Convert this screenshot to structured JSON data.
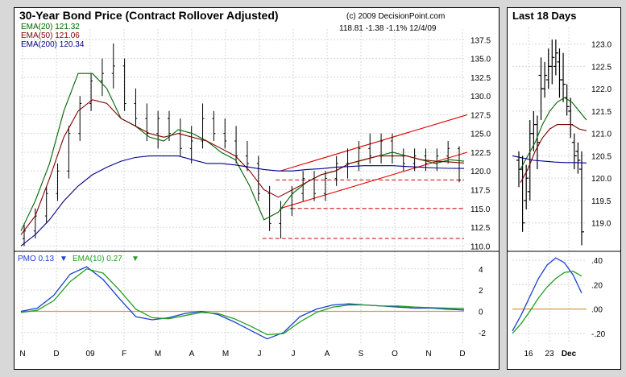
{
  "colors": {
    "background": "#d8d8d8",
    "grid": "#d7d7d7",
    "price_bars": "#000000",
    "ema20": "#006400",
    "ema50": "#800000",
    "ema200": "#00008b",
    "channel": "#e00000",
    "support": "#cc0000",
    "pmo": "#1a3fd6",
    "pmo_ema": "#20a020",
    "zero_line": "#d89a3a"
  },
  "main": {
    "title": "30-Year Bond Price (Contract Rollover Adjusted)",
    "copyright": "(c) 2009 DecisionPoint.com",
    "quote": "118.81  -1.38  -1.1%  12/4/09",
    "legend": {
      "ema20": "EMA(20) 121.32",
      "ema50": "EMA(50) 121.06",
      "ema200": "EMA(200) 120.34"
    },
    "pmo_legend": {
      "pmo": "PMO  0.13",
      "pmo_arrow": "▼",
      "ema": "EMA(10)  0.27",
      "ema_arrow": "▼"
    }
  },
  "side": {
    "title": "Last 18 Days"
  },
  "chart_data": [
    {
      "type": "line",
      "title": "30-Year Bond Price (Contract Rollover Adjusted)",
      "x_labels": [
        "N",
        "D",
        "09",
        "F",
        "M",
        "A",
        "M",
        "J",
        "J",
        "A",
        "S",
        "O",
        "N",
        "D"
      ],
      "y_ticks": [
        "137.5",
        "135.0",
        "132.5",
        "130.0",
        "127.5",
        "125.0",
        "122.5",
        "120.0",
        "117.5",
        "115.0",
        "112.5",
        "110.0"
      ],
      "ylim": [
        109.5,
        138.5
      ],
      "series": [
        {
          "name": "EMA(20)",
          "values": [
            112.0,
            116.0,
            121.0,
            128.0,
            133.0,
            133.0,
            131.0,
            127.0,
            126.0,
            124.5,
            124.0,
            125.5,
            125.0,
            124.0,
            122.5,
            121.5,
            118.0,
            113.5,
            114.5,
            117.0,
            118.5,
            119.5,
            120.0,
            121.0,
            121.5,
            122.0,
            122.5,
            122.0,
            121.5,
            121.0,
            121.5,
            121.3
          ]
        },
        {
          "name": "EMA(50)",
          "values": [
            111.5,
            114.0,
            119.0,
            124.5,
            128.0,
            129.5,
            129.0,
            127.0,
            126.0,
            125.0,
            124.5,
            125.0,
            124.5,
            124.0,
            123.0,
            122.0,
            120.0,
            117.5,
            116.5,
            117.5,
            118.5,
            119.5,
            120.0,
            121.0,
            121.5,
            122.0,
            122.0,
            122.0,
            121.5,
            121.3,
            121.2,
            121.06
          ]
        },
        {
          "name": "EMA(200)",
          "values": [
            110.0,
            111.5,
            113.5,
            116.0,
            118.0,
            119.5,
            120.5,
            121.3,
            121.8,
            122.0,
            122.0,
            122.0,
            121.5,
            121.0,
            121.0,
            120.8,
            120.5,
            120.2,
            120.0,
            120.0,
            120.2,
            120.3,
            120.5,
            120.6,
            120.7,
            120.7,
            120.7,
            120.6,
            120.5,
            120.4,
            120.35,
            120.34
          ]
        }
      ],
      "price_bars": [
        [
          111,
          113,
          110,
          112
        ],
        [
          112,
          115,
          111,
          114
        ],
        [
          114,
          118,
          113,
          117
        ],
        [
          117,
          121,
          116,
          120
        ],
        [
          120,
          126,
          119,
          125
        ],
        [
          125,
          130,
          124,
          129
        ],
        [
          129,
          133,
          128,
          132
        ],
        [
          132,
          135,
          130,
          133
        ],
        [
          133,
          137,
          131,
          134
        ],
        [
          134,
          135,
          128,
          129
        ],
        [
          129,
          131,
          126,
          127
        ],
        [
          127,
          129,
          124,
          125
        ],
        [
          125,
          128,
          123,
          127
        ],
        [
          127,
          128,
          124,
          125
        ],
        [
          125,
          127,
          122,
          123
        ],
        [
          123,
          126,
          121,
          124
        ],
        [
          124,
          129,
          123,
          127
        ],
        [
          127,
          128,
          124,
          125
        ],
        [
          125,
          127,
          123,
          124
        ],
        [
          124,
          126,
          121,
          122
        ],
        [
          122,
          124,
          120,
          121
        ],
        [
          121,
          122,
          116,
          117
        ],
        [
          117,
          118,
          112,
          113
        ],
        [
          113,
          116,
          111,
          115
        ],
        [
          115,
          118,
          114,
          117
        ],
        [
          117,
          120,
          116,
          119
        ],
        [
          119,
          120,
          116,
          117
        ],
        [
          117,
          120,
          116,
          119
        ],
        [
          119,
          122,
          118,
          121
        ],
        [
          121,
          123,
          119,
          121
        ],
        [
          121,
          124,
          120,
          123
        ],
        [
          123,
          125,
          121,
          122
        ],
        [
          122,
          125,
          121,
          124
        ],
        [
          124,
          125,
          121,
          122
        ],
        [
          122,
          123,
          120,
          121
        ],
        [
          121,
          123,
          120,
          122
        ],
        [
          122,
          123,
          120,
          121
        ],
        [
          121,
          123,
          120,
          122
        ],
        [
          122,
          124,
          121,
          123
        ],
        [
          123,
          123.3,
          118.5,
          118.8
        ]
      ],
      "channel_upper": [
        [
          117.5,
          120.0
        ],
        [
          126.7,
          127.5
        ]
      ],
      "channel_lower": [
        [
          117.5,
          115.0
        ],
        [
          126.7,
          122.5
        ]
      ],
      "support_levels": [
        118.81,
        115.0,
        111.0
      ],
      "pmo_panel": {
        "y_ticks": [
          "4",
          "2",
          "0",
          "-2"
        ],
        "ylim": [
          -3,
          5.5
        ],
        "series": [
          {
            "name": "PMO",
            "values": [
              0.0,
              0.3,
              1.5,
              3.5,
              4.2,
              3.0,
              1.2,
              -0.5,
              -0.8,
              -0.6,
              -0.2,
              0.0,
              -0.3,
              -1.0,
              -1.8,
              -2.6,
              -2.0,
              -0.5,
              0.2,
              0.6,
              0.7,
              0.6,
              0.5,
              0.4,
              0.3,
              0.3,
              0.2,
              0.13
            ]
          },
          {
            "name": "EMA(10)",
            "values": [
              -0.1,
              0.1,
              1.0,
              2.8,
              4.0,
              3.6,
              2.0,
              0.2,
              -0.6,
              -0.7,
              -0.4,
              -0.1,
              -0.2,
              -0.7,
              -1.4,
              -2.2,
              -2.1,
              -1.0,
              -0.1,
              0.4,
              0.6,
              0.6,
              0.5,
              0.5,
              0.4,
              0.35,
              0.3,
              0.27
            ]
          }
        ]
      }
    },
    {
      "type": "line",
      "title": "Last 18 Days",
      "x_labels": [
        "16",
        "23",
        "Dec"
      ],
      "y_ticks": [
        "123.0",
        "122.5",
        "122.0",
        "121.5",
        "121.0",
        "120.5",
        "120.0",
        "119.5",
        "119.0"
      ],
      "ylim": [
        118.4,
        123.3
      ],
      "price_bars": [
        [
          120.4,
          120.6,
          119.8,
          120.2
        ],
        [
          120.2,
          120.5,
          118.8,
          119.0
        ],
        [
          119.5,
          120.3,
          119.3,
          120.0
        ],
        [
          119.7,
          121.3,
          119.5,
          121.0
        ],
        [
          121.0,
          121.5,
          120.6,
          121.2
        ],
        [
          121.2,
          121.4,
          120.2,
          120.8
        ],
        [
          122.3,
          122.7,
          121.3,
          122.0
        ],
        [
          122.0,
          122.6,
          121.8,
          122.3
        ],
        [
          122.2,
          122.9,
          122.0,
          122.5
        ],
        [
          122.5,
          123.1,
          122.1,
          122.7
        ],
        [
          122.5,
          123.1,
          122.3,
          122.8
        ],
        [
          122.6,
          122.9,
          121.8,
          122.2
        ],
        [
          122.2,
          122.8,
          121.7,
          122.1
        ],
        [
          121.8,
          122.1,
          121.4,
          121.6
        ],
        [
          121.5,
          121.8,
          120.9,
          121.2
        ],
        [
          120.8,
          121.0,
          120.2,
          120.5
        ],
        [
          120.6,
          120.8,
          120.1,
          120.4
        ],
        [
          120.2,
          120.6,
          118.5,
          118.8
        ]
      ],
      "series": [
        {
          "name": "EMA(20)",
          "values": [
            120.2,
            120.5,
            120.8,
            121.2,
            121.5,
            121.7,
            121.8,
            121.7,
            121.5,
            121.3
          ]
        },
        {
          "name": "EMA(50)",
          "values": [
            119.9,
            120.2,
            120.6,
            120.9,
            121.1,
            121.2,
            121.2,
            121.2,
            121.1,
            121.06
          ]
        },
        {
          "name": "EMA(200)",
          "values": [
            120.5,
            120.45,
            120.4,
            120.38,
            120.36,
            120.35,
            120.35,
            120.34
          ]
        }
      ],
      "pmo_panel": {
        "y_ticks": [
          ".40",
          ".20",
          ".00",
          "-.20"
        ],
        "ylim": [
          -0.28,
          0.46
        ],
        "series": [
          {
            "name": "PMO",
            "values": [
              -0.18,
              -0.05,
              0.1,
              0.25,
              0.36,
              0.42,
              0.38,
              0.28,
              0.13
            ]
          },
          {
            "name": "EMA(10)",
            "values": [
              -0.2,
              -0.12,
              -0.02,
              0.09,
              0.18,
              0.25,
              0.3,
              0.31,
              0.27
            ]
          }
        ]
      }
    }
  ]
}
